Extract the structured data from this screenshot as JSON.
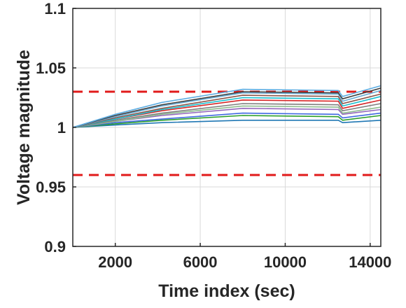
{
  "chart_data": {
    "type": "line",
    "title": "",
    "xlabel": "Time index (sec)",
    "ylabel": "Voltage magnitude",
    "xlim": [
      0,
      14500
    ],
    "ylim": [
      0.9,
      1.1
    ],
    "xticks": [
      2000,
      6000,
      10000,
      14000
    ],
    "xtick_labels": [
      "2000",
      "6000",
      "10000",
      "14000"
    ],
    "yticks": [
      0.9,
      0.95,
      1,
      1.05,
      1.1
    ],
    "ytick_labels": [
      "0.9",
      "0.95",
      "1",
      "1.05",
      "1.1"
    ],
    "grid": true,
    "legend": "none",
    "thresholds": [
      {
        "value": 1.03,
        "color": "#e11b1b",
        "style": "dashed"
      },
      {
        "value": 0.96,
        "color": "#e11b1b",
        "style": "dashed"
      }
    ],
    "series": [
      {
        "color": "#1f77b4",
        "x": [
          0,
          2000,
          4200,
          8000,
          12500,
          12700,
          14500
        ],
        "values": [
          1.0,
          1.002,
          1.004,
          1.006,
          1.006,
          1.004,
          1.006
        ]
      },
      {
        "color": "#2ca02c",
        "x": [
          0,
          2000,
          4200,
          8000,
          12500,
          12700,
          14500
        ],
        "values": [
          1.0,
          1.003,
          1.006,
          1.01,
          1.009,
          1.006,
          1.01
        ]
      },
      {
        "color": "#4169e1",
        "x": [
          0,
          2000,
          4200,
          8000,
          12500,
          12700,
          14500
        ],
        "values": [
          1.0,
          1.004,
          1.007,
          1.012,
          1.011,
          1.008,
          1.012
        ]
      },
      {
        "color": "#9467bd",
        "x": [
          0,
          2000,
          4200,
          8000,
          12500,
          12700,
          14500
        ],
        "values": [
          1.0,
          1.005,
          1.01,
          1.016,
          1.015,
          1.011,
          1.015
        ]
      },
      {
        "color": "#8fbc8f",
        "x": [
          0,
          2000,
          4200,
          8000,
          12500,
          12700,
          14500
        ],
        "values": [
          1.0,
          1.005,
          1.011,
          1.018,
          1.017,
          1.012,
          1.017
        ]
      },
      {
        "color": "#7f7f7f",
        "x": [
          0,
          2000,
          4200,
          8000,
          12500,
          12700,
          14500
        ],
        "values": [
          1.0,
          1.006,
          1.012,
          1.02,
          1.019,
          1.014,
          1.02
        ]
      },
      {
        "color": "#d62728",
        "x": [
          0,
          2000,
          4200,
          8000,
          12500,
          12700,
          14500
        ],
        "values": [
          1.0,
          1.007,
          1.014,
          1.023,
          1.022,
          1.016,
          1.023
        ]
      },
      {
        "color": "#17becf",
        "x": [
          0,
          2000,
          4200,
          8000,
          12500,
          12700,
          14500
        ],
        "values": [
          1.0,
          1.007,
          1.015,
          1.025,
          1.024,
          1.018,
          1.026
        ]
      },
      {
        "color": "#8c564b",
        "x": [
          0,
          2000,
          4200,
          8000,
          12500,
          12700,
          14500
        ],
        "values": [
          1.0,
          1.008,
          1.016,
          1.027,
          1.026,
          1.02,
          1.028
        ]
      },
      {
        "color": "#6baed6",
        "x": [
          0,
          2000,
          4200,
          8000,
          12500,
          12700,
          14500
        ],
        "values": [
          1.0,
          1.009,
          1.018,
          1.029,
          1.028,
          1.022,
          1.031
        ]
      },
      {
        "color": "#404040",
        "x": [
          0,
          2000,
          4200,
          8000,
          12500,
          12700,
          14500
        ],
        "values": [
          1.0,
          1.01,
          1.019,
          1.03,
          1.029,
          1.024,
          1.033
        ]
      },
      {
        "color": "#5dade2",
        "x": [
          0,
          2000,
          4200,
          8000,
          12500,
          12700,
          14500
        ],
        "values": [
          1.0,
          1.011,
          1.021,
          1.032,
          1.031,
          1.026,
          1.035
        ]
      }
    ]
  }
}
